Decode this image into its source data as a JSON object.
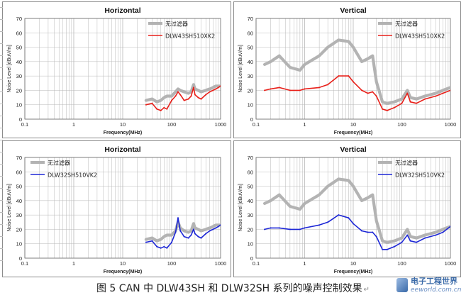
{
  "figure": {
    "caption": "图 5    CAN 中 DLW43SH 和 DLW32SH 系列的噪声控制效果",
    "caption_end": "↵",
    "watermark": {
      "cn": "电子工程世界",
      "en": "eeworld.com.cn"
    }
  },
  "colors": {
    "gray": "#b3b3b3",
    "red": "#e8201a",
    "blue": "#1d27d6",
    "frame": "#8c8c8c",
    "grid": "#b8b8b8"
  },
  "chart_data": [
    {
      "type": "line",
      "title": "Horizontal",
      "xlabel": "Frequency(MHz)",
      "ylabel": "Noise Level [dBuV/m]",
      "xscale": "log",
      "xlim": [
        0.1,
        1000
      ],
      "ylim": [
        0,
        70
      ],
      "xticks": [
        "0.1",
        "1",
        "10",
        "100",
        "1000"
      ],
      "yticks": [
        "0",
        "10",
        "20",
        "30",
        "40",
        "50",
        "60",
        "70"
      ],
      "legend_position": "top-right",
      "series": [
        {
          "name": "无过滤器",
          "color": "gray",
          "x": [
            30,
            40,
            50,
            60,
            70,
            80,
            100,
            120,
            135,
            150,
            180,
            220,
            250,
            280,
            300,
            350,
            400,
            500,
            600,
            700,
            800,
            900,
            1000
          ],
          "y": [
            13,
            14,
            12,
            13,
            15,
            16,
            16,
            19,
            21,
            20,
            19,
            18,
            19,
            24,
            21,
            20,
            19,
            20,
            21,
            22,
            23,
            23,
            23
          ]
        },
        {
          "name": "DLW43SH510XK2",
          "color": "red",
          "x": [
            30,
            40,
            50,
            60,
            70,
            80,
            100,
            120,
            135,
            150,
            180,
            220,
            250,
            280,
            300,
            350,
            400,
            500,
            600,
            700,
            800,
            900,
            1000
          ],
          "y": [
            10,
            11,
            7,
            6,
            8,
            7,
            13,
            16,
            19,
            17,
            13,
            14,
            16,
            22,
            17,
            15,
            14,
            17,
            19,
            20,
            21,
            22,
            23
          ]
        }
      ]
    },
    {
      "type": "line",
      "title": "Vertical",
      "xlabel": "Frequency(MHz)",
      "ylabel": "Noise Level [dBuV/m]",
      "xscale": "log",
      "xlim": [
        0.1,
        1000
      ],
      "ylim": [
        0,
        70
      ],
      "xticks": [
        "0.1",
        "1",
        "10",
        "100",
        "1000"
      ],
      "yticks": [
        "0",
        "10",
        "20",
        "30",
        "40",
        "50",
        "60",
        "70"
      ],
      "legend_position": "top-right",
      "series": [
        {
          "name": "无过滤器",
          "color": "gray",
          "x": [
            0.15,
            0.2,
            0.3,
            0.5,
            0.8,
            1,
            2,
            3,
            5,
            8,
            10,
            15,
            20,
            25,
            30,
            40,
            50,
            70,
            100,
            130,
            150,
            200,
            300,
            500,
            700,
            1000
          ],
          "y": [
            38,
            40,
            44,
            36,
            34,
            38,
            44,
            50,
            55,
            54,
            50,
            40,
            42,
            44,
            26,
            12,
            11,
            12,
            14,
            20,
            15,
            14,
            16,
            18,
            20,
            22
          ]
        },
        {
          "name": "DLW43SH510XK2",
          "color": "red",
          "x": [
            0.15,
            0.2,
            0.3,
            0.5,
            0.8,
            1,
            2,
            3,
            5,
            8,
            10,
            15,
            20,
            25,
            30,
            40,
            50,
            70,
            100,
            130,
            150,
            200,
            300,
            500,
            700,
            1000
          ],
          "y": [
            20,
            21,
            22,
            20,
            20,
            21,
            22,
            24,
            30,
            30,
            26,
            20,
            18,
            19,
            16,
            7,
            6,
            8,
            11,
            18,
            12,
            11,
            14,
            16,
            18,
            20
          ]
        }
      ]
    },
    {
      "type": "line",
      "title": "Horizontal",
      "xlabel": "Frequency(MHz)",
      "ylabel": "Noise Level [dBuV/m]",
      "xscale": "log",
      "xlim": [
        0.1,
        1000
      ],
      "ylim": [
        0,
        70
      ],
      "xticks": [
        "0.1",
        "1",
        "10",
        "100",
        "1000"
      ],
      "yticks": [
        "0",
        "10",
        "20",
        "30",
        "40",
        "50",
        "60",
        "70"
      ],
      "legend_position": "top-left",
      "series": [
        {
          "name": "无过滤器",
          "color": "gray",
          "x": [
            30,
            40,
            50,
            60,
            70,
            80,
            100,
            120,
            135,
            150,
            180,
            220,
            250,
            280,
            300,
            350,
            400,
            500,
            600,
            700,
            800,
            900,
            1000
          ],
          "y": [
            13,
            14,
            12,
            13,
            15,
            16,
            16,
            19,
            25,
            21,
            19,
            18,
            19,
            24,
            21,
            20,
            19,
            20,
            21,
            22,
            23,
            23,
            23
          ]
        },
        {
          "name": "DLW32SH510VK2",
          "color": "blue",
          "x": [
            30,
            40,
            50,
            60,
            70,
            80,
            100,
            120,
            135,
            150,
            180,
            220,
            250,
            280,
            300,
            350,
            400,
            500,
            600,
            700,
            800,
            900,
            1000
          ],
          "y": [
            11,
            12,
            8,
            7,
            8,
            7,
            11,
            18,
            28,
            19,
            15,
            14,
            16,
            20,
            17,
            15,
            14,
            17,
            19,
            20,
            21,
            22,
            23
          ]
        }
      ]
    },
    {
      "type": "line",
      "title": "Vertical",
      "xlabel": "Frequency(MHz)",
      "ylabel": "Noise Level [dBuV/m]",
      "xscale": "log",
      "xlim": [
        0.1,
        1000
      ],
      "ylim": [
        0,
        70
      ],
      "xticks": [
        "0.1",
        "1",
        "10",
        "100",
        "1000"
      ],
      "yticks": [
        "0",
        "10",
        "20",
        "30",
        "40",
        "50",
        "60",
        "70"
      ],
      "legend_position": "top-right",
      "series": [
        {
          "name": "无过滤器",
          "color": "gray",
          "x": [
            0.15,
            0.2,
            0.3,
            0.5,
            0.8,
            1,
            2,
            3,
            5,
            8,
            10,
            15,
            20,
            25,
            30,
            40,
            50,
            70,
            100,
            130,
            150,
            200,
            300,
            500,
            700,
            1000
          ],
          "y": [
            38,
            40,
            44,
            36,
            34,
            38,
            44,
            50,
            55,
            54,
            50,
            40,
            42,
            44,
            26,
            12,
            11,
            12,
            14,
            20,
            15,
            14,
            16,
            18,
            20,
            22
          ]
        },
        {
          "name": "DLW32SH510VK2",
          "color": "blue",
          "x": [
            0.15,
            0.2,
            0.3,
            0.5,
            0.8,
            1,
            2,
            3,
            5,
            8,
            10,
            15,
            20,
            25,
            30,
            40,
            50,
            70,
            100,
            130,
            150,
            200,
            300,
            500,
            700,
            1000
          ],
          "y": [
            20,
            21,
            21,
            20,
            20,
            21,
            23,
            25,
            30,
            28,
            24,
            19,
            18,
            18,
            15,
            6,
            6,
            8,
            11,
            16,
            12,
            11,
            14,
            16,
            18,
            22
          ]
        }
      ]
    }
  ]
}
